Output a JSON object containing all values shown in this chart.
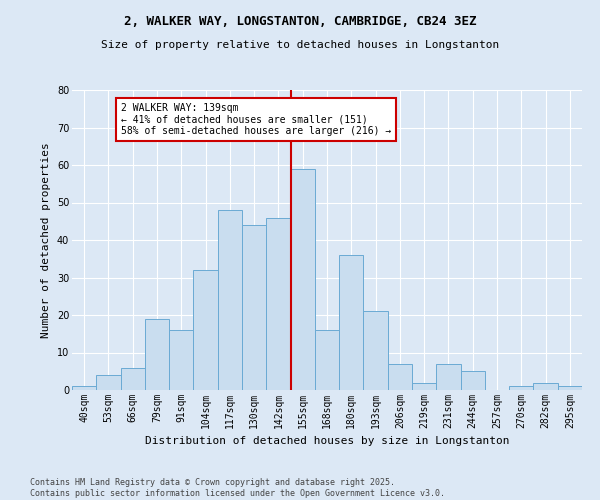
{
  "title_line1": "2, WALKER WAY, LONGSTANTON, CAMBRIDGE, CB24 3EZ",
  "title_line2": "Size of property relative to detached houses in Longstanton",
  "xlabel": "Distribution of detached houses by size in Longstanton",
  "ylabel": "Number of detached properties",
  "categories": [
    "40sqm",
    "53sqm",
    "66sqm",
    "79sqm",
    "91sqm",
    "104sqm",
    "117sqm",
    "130sqm",
    "142sqm",
    "155sqm",
    "168sqm",
    "180sqm",
    "193sqm",
    "206sqm",
    "219sqm",
    "231sqm",
    "244sqm",
    "257sqm",
    "270sqm",
    "282sqm",
    "295sqm"
  ],
  "values": [
    1,
    4,
    6,
    19,
    16,
    32,
    48,
    44,
    46,
    59,
    16,
    36,
    21,
    7,
    2,
    7,
    5,
    0,
    1,
    2,
    1
  ],
  "bar_color": "#c9ddef",
  "bar_edge_color": "#6aaad4",
  "background_color": "#dce8f5",
  "grid_color": "#ffffff",
  "vline_x": 8.5,
  "vline_color": "#cc0000",
  "annotation_text": "2 WALKER WAY: 139sqm\n← 41% of detached houses are smaller (151)\n58% of semi-detached houses are larger (216) →",
  "annotation_box_edge_color": "#cc0000",
  "annotation_box_face_color": "#ffffff",
  "ylim": [
    0,
    80
  ],
  "yticks": [
    0,
    10,
    20,
    30,
    40,
    50,
    60,
    70,
    80
  ],
  "footer_line1": "Contains HM Land Registry data © Crown copyright and database right 2025.",
  "footer_line2": "Contains public sector information licensed under the Open Government Licence v3.0."
}
